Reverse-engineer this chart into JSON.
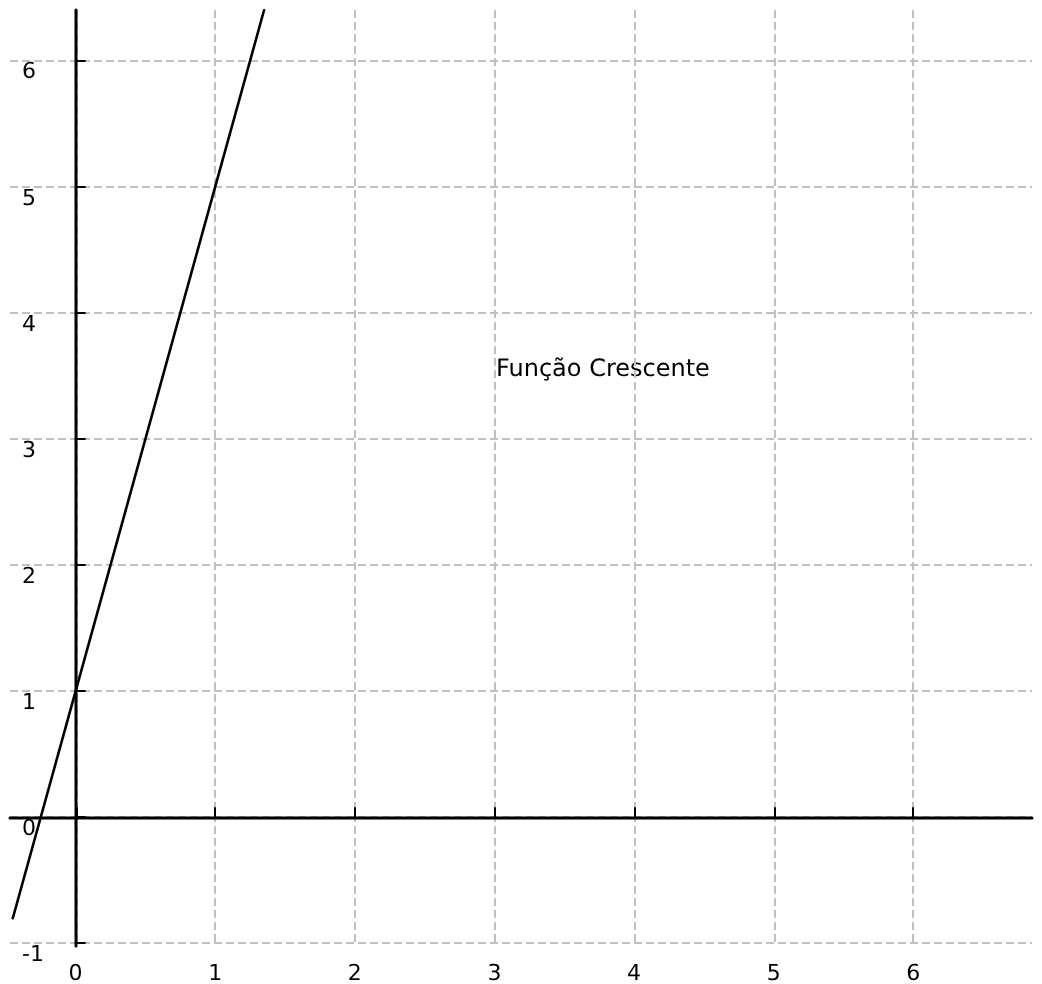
{
  "chart_data": {
    "type": "line",
    "annotations": [
      "Função Crescente"
    ],
    "series": [
      {
        "x": [
          -0.45,
          1.35
        ],
        "values": [
          -0.8,
          6.4
        ],
        "color": "#000000"
      }
    ],
    "xlim": [
      -0.47,
      6.85
    ],
    "ylim": [
      -1.02,
      6.4
    ],
    "xticks": [
      0,
      1,
      2,
      3,
      4,
      5,
      6
    ],
    "yticks": [
      -1,
      0,
      1,
      2,
      3,
      4,
      5,
      6
    ],
    "grid": true,
    "marker": "none",
    "line_style": "solid"
  }
}
